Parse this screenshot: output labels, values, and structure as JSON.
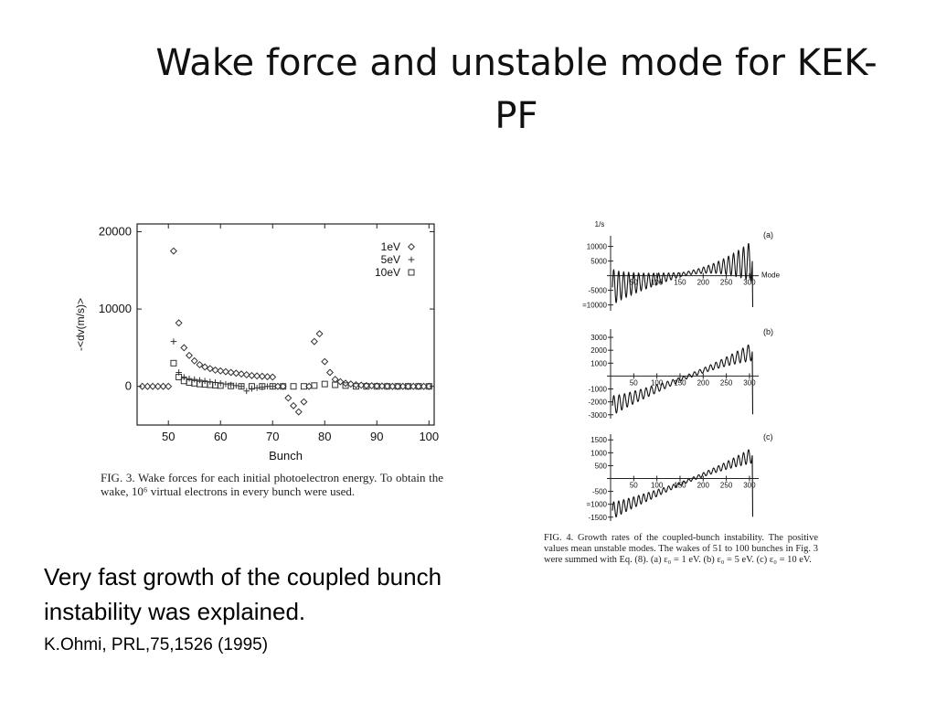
{
  "slide": {
    "title": "Wake force and unstable mode for KEK-PF",
    "body_text": "Very fast growth of the coupled bunch instability was explained.",
    "reference": "K.Ohmi, PRL,75,1526 (1995)"
  },
  "fig3_caption": "FIG. 3.  Wake forces for each initial photoelectron energy. To obtain the wake, 10⁶ virtual electrons in every bunch were used.",
  "fig4_caption": "FIG. 4.  Growth rates of the coupled-bunch instability. The positive values mean unstable modes. The wakes of 51 to 100 bunches in Fig. 3 were summed with Eq. (8).  (a) ε₀ = 1 eV. (b) ε₀ = 5 eV. (c) ε₀ = 10 eV.",
  "chart_data": [
    {
      "type": "scatter",
      "id": "fig3",
      "xlabel": "Bunch",
      "ylabel": "-<dv(m/s)>",
      "xlim": [
        44,
        101
      ],
      "ylim": [
        -5000,
        21000
      ],
      "x_ticks": [
        50,
        60,
        70,
        80,
        90,
        100
      ],
      "y_ticks": [
        0,
        10000,
        20000
      ],
      "legend_position": "top-right",
      "series": [
        {
          "name": "1eV",
          "marker": "diamond",
          "x": [
            45,
            46,
            47,
            48,
            49,
            50,
            51,
            52,
            53,
            54,
            55,
            56,
            57,
            58,
            59,
            60,
            61,
            62,
            63,
            64,
            65,
            66,
            67,
            68,
            69,
            70,
            71,
            72,
            73,
            74,
            75,
            76,
            77,
            78,
            79,
            80,
            81,
            82,
            83,
            84,
            85,
            86,
            87,
            88,
            89,
            90,
            91,
            92,
            93,
            94,
            95,
            96,
            97,
            98,
            99,
            100
          ],
          "y": [
            0,
            0,
            0,
            0,
            0,
            0,
            17500,
            8200,
            5000,
            4000,
            3300,
            2800,
            2500,
            2300,
            2100,
            2000,
            1900,
            1800,
            1700,
            1600,
            1500,
            1400,
            1350,
            1300,
            1250,
            1200,
            0,
            0,
            -1500,
            -2500,
            -3300,
            -2000,
            0,
            5800,
            6800,
            3200,
            1800,
            900,
            600,
            400,
            300,
            200,
            150,
            100,
            80,
            50,
            30,
            20,
            0,
            0,
            0,
            0,
            0,
            0,
            0,
            0
          ]
        },
        {
          "name": "5eV",
          "marker": "plus",
          "x": [
            51,
            52,
            53,
            54,
            55,
            56,
            57,
            58,
            59,
            60,
            61,
            62,
            63,
            64,
            65,
            66,
            67,
            68,
            69,
            70
          ],
          "y": [
            5800,
            1800,
            1200,
            1000,
            900,
            800,
            700,
            600,
            500,
            400,
            300,
            200,
            100,
            0,
            -600,
            -300,
            -200,
            -100,
            0,
            0
          ]
        },
        {
          "name": "10eV",
          "marker": "square",
          "x": [
            51,
            52,
            53,
            54,
            55,
            56,
            57,
            58,
            59,
            60,
            62,
            64,
            66,
            68,
            70,
            72,
            74,
            76,
            78,
            80,
            82,
            84,
            86,
            88,
            90,
            92,
            94,
            96,
            98,
            100
          ],
          "y": [
            3000,
            1200,
            700,
            500,
            400,
            300,
            250,
            200,
            150,
            100,
            50,
            0,
            0,
            0,
            0,
            0,
            0,
            0,
            100,
            300,
            200,
            100,
            0,
            0,
            0,
            0,
            0,
            0,
            0,
            0
          ]
        }
      ]
    },
    {
      "type": "line",
      "id": "fig4a",
      "panel_label": "(a)",
      "unit_label": "1/s",
      "axis_label": "Mode",
      "xlim": [
        0,
        310
      ],
      "ylim": [
        -12000,
        13000
      ],
      "x_ticks": [
        50,
        100,
        150,
        200,
        250,
        300
      ],
      "y_ticks": [
        10000,
        5000,
        -5000,
        -10000
      ],
      "y_tick_labels": [
        "10000",
        "5000",
        "-5000",
        "=10000"
      ],
      "trend_start": -4000,
      "trend_end": 5000,
      "amp_start": 6500,
      "amp_mid": 600,
      "amp_end": 7000,
      "cycles": 28
    },
    {
      "type": "line",
      "id": "fig4b",
      "panel_label": "(b)",
      "xlim": [
        0,
        310
      ],
      "ylim": [
        -3300,
        3500
      ],
      "x_ticks": [
        50,
        100,
        150,
        200,
        250,
        300
      ],
      "y_ticks": [
        3000,
        2000,
        1000,
        -1000,
        -2000,
        -3000
      ],
      "y_tick_labels": [
        "3000",
        "2000",
        "1000",
        "-1000",
        "-2000",
        "-3000"
      ],
      "trend_start": -2300,
      "trend_end": 1900,
      "amp_start": 800,
      "amp_mid": 150,
      "amp_end": 700,
      "cycles": 26
    },
    {
      "type": "line",
      "id": "fig4c",
      "panel_label": "(c)",
      "xlim": [
        0,
        310
      ],
      "ylim": [
        -1650,
        1650
      ],
      "x_ticks": [
        50,
        100,
        150,
        200,
        250,
        300
      ],
      "y_ticks": [
        1500,
        1000,
        500,
        -500,
        -1000,
        -1500
      ],
      "y_tick_labels": [
        "1500",
        "1000",
        "500",
        "-500",
        "=1000",
        "-1500"
      ],
      "trend_start": -1250,
      "trend_end": 900,
      "amp_start": 350,
      "amp_mid": 60,
      "amp_end": 300,
      "cycles": 28
    }
  ]
}
